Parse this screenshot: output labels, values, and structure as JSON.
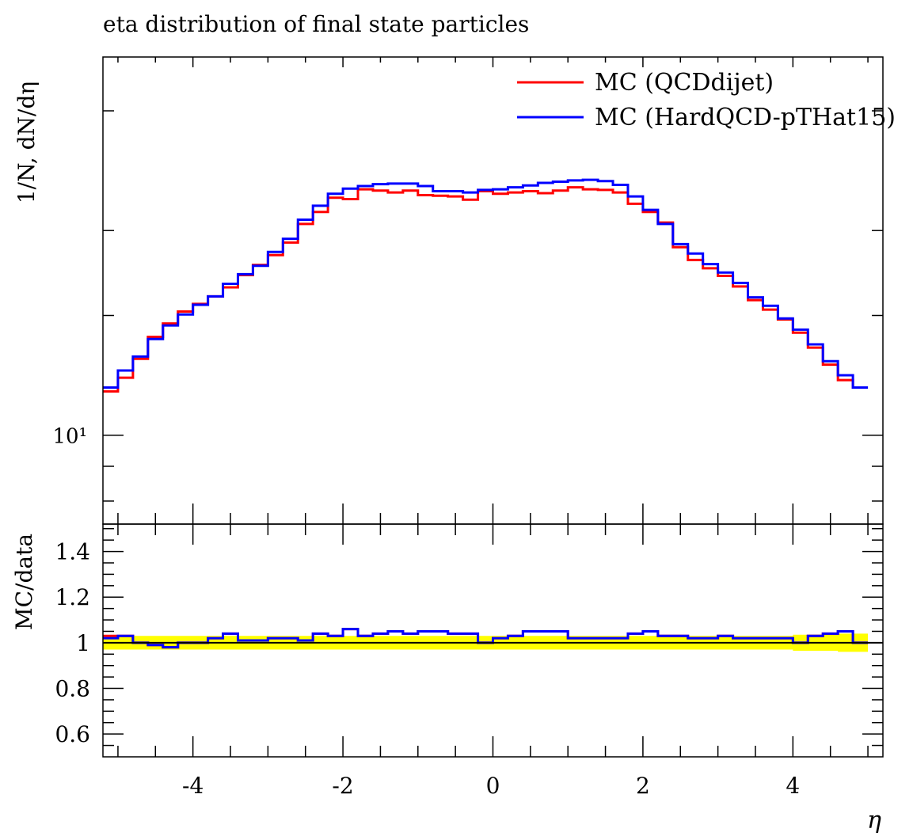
{
  "chart_data": {
    "title": "eta distribution of final state particles",
    "xlabel": "η",
    "main": {
      "type": "line",
      "ylabel": "1/N, dN/dη",
      "yscale": "log",
      "ylim": [
        7.4,
        36
      ],
      "y_tick_labels": [
        {
          "value": 10,
          "label": "10¹"
        }
      ],
      "xlim": [
        -5.2,
        5.2
      ],
      "bin_edges": [
        -5.2,
        -5.0,
        -4.8,
        -4.6,
        -4.4,
        -4.2,
        -4.0,
        -3.8,
        -3.6,
        -3.4,
        -3.2,
        -3.0,
        -2.8,
        -2.6,
        -2.4,
        -2.2,
        -2.0,
        -1.8,
        -1.6,
        -1.4,
        -1.2,
        -1.0,
        -0.8,
        -0.6,
        -0.4,
        -0.2,
        0.0,
        0.2,
        0.4,
        0.6,
        0.8,
        1.0,
        1.2,
        1.4,
        1.6,
        1.8,
        2.0,
        2.2,
        2.4,
        2.6,
        2.8,
        3.0,
        3.2,
        3.4,
        3.6,
        3.8,
        4.0,
        4.2,
        4.4,
        4.6,
        4.8,
        5.0,
        5.2
      ],
      "legend": {
        "position": "top-right"
      },
      "series": [
        {
          "name": "MC (QCDdijet)",
          "color": "#ff0000",
          "values": [
            11.6,
            12.15,
            12.95,
            13.95,
            14.6,
            15.2,
            15.6,
            16.0,
            16.5,
            17.2,
            17.8,
            18.4,
            19.2,
            20.45,
            21.3,
            22.35,
            22.25,
            23.0,
            22.9,
            22.75,
            22.9,
            22.55,
            22.5,
            22.45,
            22.2,
            22.85,
            22.65,
            22.75,
            22.85,
            22.7,
            22.9,
            23.15,
            23.0,
            22.95,
            22.75,
            21.9,
            21.3,
            20.55,
            18.9,
            18.1,
            17.6,
            17.15,
            16.55,
            15.8,
            15.3,
            14.8,
            14.15,
            13.45,
            12.7,
            12.05,
            11.75
          ],
          "ratio": [
            1.03,
            1.03,
            1.0,
            0.99,
            0.98,
            1.0,
            1.0,
            1.02,
            1.04,
            1.01,
            1.01,
            1.02,
            1.02,
            1.01,
            1.04,
            1.03,
            1.06,
            1.03,
            1.04,
            1.05,
            1.04,
            1.05,
            1.05,
            1.04,
            1.04,
            1.0,
            1.02,
            1.03,
            1.05,
            1.05,
            1.05,
            1.02,
            1.02,
            1.02,
            1.02,
            1.04,
            1.05,
            1.03,
            1.03,
            1.02,
            1.02,
            1.03,
            1.02,
            1.02,
            1.02,
            1.02,
            1.0,
            1.03,
            1.04,
            1.05,
            1.0
          ]
        },
        {
          "name": "MC (HardQCD-pTHat15)",
          "color": "#0000ff",
          "values": [
            11.75,
            12.45,
            13.05,
            13.85,
            14.5,
            15.05,
            15.55,
            16.0,
            16.7,
            17.25,
            17.75,
            18.6,
            19.45,
            20.75,
            21.75,
            22.65,
            23.05,
            23.25,
            23.4,
            23.45,
            23.45,
            23.25,
            22.85,
            22.85,
            22.75,
            22.95,
            23.0,
            23.15,
            23.3,
            23.5,
            23.6,
            23.7,
            23.75,
            23.65,
            23.35,
            22.45,
            21.45,
            20.45,
            19.1,
            18.5,
            17.85,
            17.35,
            16.75,
            15.95,
            15.5,
            14.85,
            14.3,
            13.6,
            12.85,
            12.25,
            11.75
          ],
          "ratio": [
            1.02,
            1.03,
            1.0,
            0.99,
            0.98,
            1.0,
            1.0,
            1.02,
            1.04,
            1.01,
            1.01,
            1.02,
            1.02,
            1.01,
            1.04,
            1.03,
            1.06,
            1.03,
            1.04,
            1.05,
            1.04,
            1.05,
            1.05,
            1.04,
            1.04,
            1.0,
            1.02,
            1.03,
            1.05,
            1.05,
            1.05,
            1.02,
            1.02,
            1.02,
            1.02,
            1.04,
            1.05,
            1.03,
            1.03,
            1.02,
            1.02,
            1.03,
            1.02,
            1.02,
            1.02,
            1.02,
            1.0,
            1.03,
            1.04,
            1.05,
            1.0
          ]
        }
      ]
    },
    "ratio_panel": {
      "ylabel": "MC/data",
      "ylim": [
        0.5,
        1.52
      ],
      "y_ticks": [
        0.6,
        0.8,
        1.0,
        1.2,
        1.4
      ],
      "y_tick_labels": [
        "0.6",
        "0.8",
        "1",
        "1.2",
        "1.4"
      ],
      "band_color": "#ffff00",
      "band_halfwidth": [
        0.03,
        0.03,
        0.03,
        0.03,
        0.03,
        0.03,
        0.03,
        0.03,
        0.03,
        0.03,
        0.03,
        0.03,
        0.03,
        0.03,
        0.03,
        0.03,
        0.03,
        0.03,
        0.03,
        0.03,
        0.03,
        0.03,
        0.03,
        0.03,
        0.03,
        0.03,
        0.03,
        0.03,
        0.03,
        0.03,
        0.03,
        0.03,
        0.03,
        0.03,
        0.03,
        0.03,
        0.03,
        0.03,
        0.03,
        0.03,
        0.03,
        0.03,
        0.03,
        0.03,
        0.03,
        0.03,
        0.035,
        0.035,
        0.035,
        0.04,
        0.04
      ]
    },
    "x_ticks": [
      -4,
      -2,
      0,
      2,
      4
    ],
    "x_tick_labels": [
      "-4",
      "-2",
      "0",
      "2",
      "4"
    ]
  }
}
